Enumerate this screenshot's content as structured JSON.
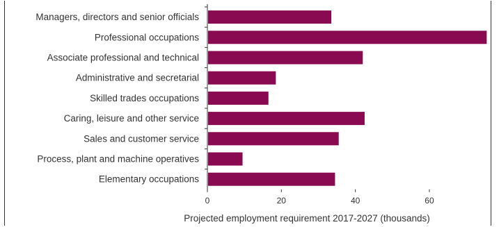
{
  "chart_data": {
    "type": "bar",
    "orientation": "horizontal",
    "categories": [
      "Managers, directors and senior officials",
      "Professional occupations",
      "Associate professional and technical",
      "Administrative and secretarial",
      "Skilled trades occupations",
      "Caring, leisure and other service",
      "Sales and customer service",
      "Process, plant and machine operatives",
      "Elementary occupations"
    ],
    "values": [
      33.5,
      75.5,
      42,
      18.5,
      16.5,
      42.5,
      35.5,
      9.5,
      34.5
    ],
    "xlabel": "Projected employment requirement 2017-2027 (thousands)",
    "ylabel": "",
    "xlim": [
      0,
      76
    ],
    "xticks": [
      "0",
      "20",
      "40",
      "60"
    ],
    "grid": false,
    "colors": {
      "bar": "#8a0a52",
      "axis": "#333333"
    }
  }
}
